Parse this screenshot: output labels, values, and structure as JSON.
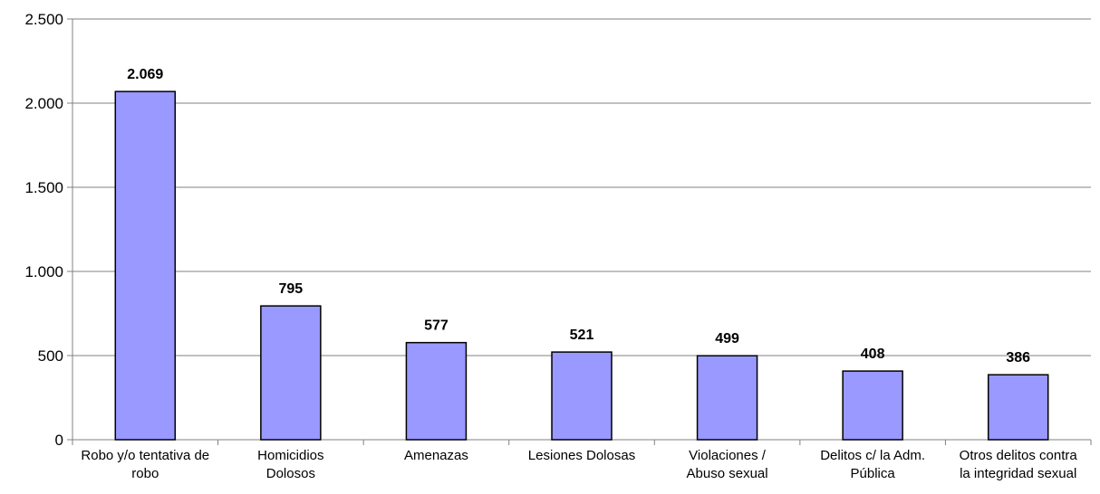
{
  "chart_data": {
    "type": "bar",
    "categories": [
      [
        "Robo y/o tentativa de",
        "robo"
      ],
      [
        "Homicidios",
        "Dolosos"
      ],
      [
        "Amenazas"
      ],
      [
        "Lesiones Dolosas"
      ],
      [
        "Violaciones /",
        "Abuso sexual"
      ],
      [
        "Delitos c/ la Adm.",
        "Pública"
      ],
      [
        "Otros delitos contra",
        "la integridad sexual"
      ]
    ],
    "values": [
      2069,
      795,
      577,
      521,
      499,
      408,
      386
    ],
    "value_labels": [
      "2.069",
      "795",
      "577",
      "521",
      "499",
      "408",
      "386"
    ],
    "yticks": [
      0,
      500,
      1000,
      1500,
      2000,
      2500
    ],
    "ytick_labels": [
      "0",
      "500",
      "1.000",
      "1.500",
      "2.000",
      "2.500"
    ],
    "ylim": [
      0,
      2500
    ],
    "title": "",
    "xlabel": "",
    "ylabel": "",
    "grid": true,
    "legend": "none",
    "colors": {
      "bar_fill": "#9999ff",
      "bar_stroke": "#000000",
      "grid": "#808080",
      "axis": "#808080"
    }
  }
}
